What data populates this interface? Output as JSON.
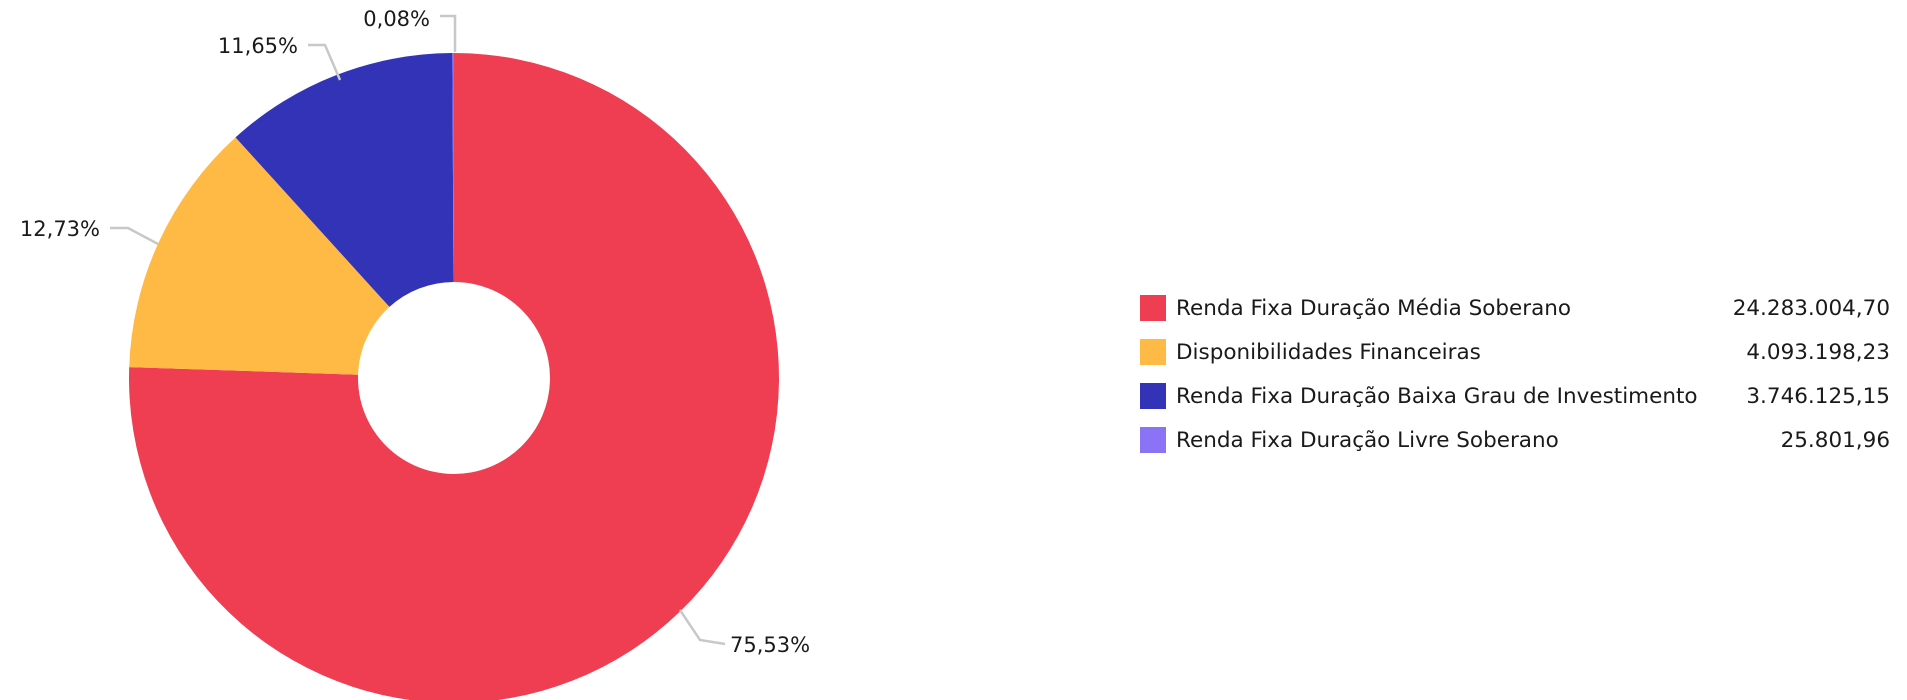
{
  "chart_data": {
    "type": "pie",
    "title": "",
    "categories": [
      "Renda Fixa Duração Média Soberano",
      "Disponibilidades Financeiras",
      "Renda Fixa Duração Baixa Grau de Investimento",
      "Renda Fixa Duração Livre Soberano"
    ],
    "values": [
      24283004.7,
      4093198.23,
      3746125.15,
      25801.96
    ],
    "value_labels": [
      "24.283.004,70",
      "4.093.198,23",
      "3.746.125,15",
      "25.801,96"
    ],
    "percent_labels": [
      "75,53%",
      "12,73%",
      "11,65%",
      "0,08%"
    ],
    "colors": [
      "#EF3D51",
      "#FFB945",
      "#3333B8",
      "#8A74F5"
    ],
    "donut": true,
    "legend_position": "right"
  }
}
